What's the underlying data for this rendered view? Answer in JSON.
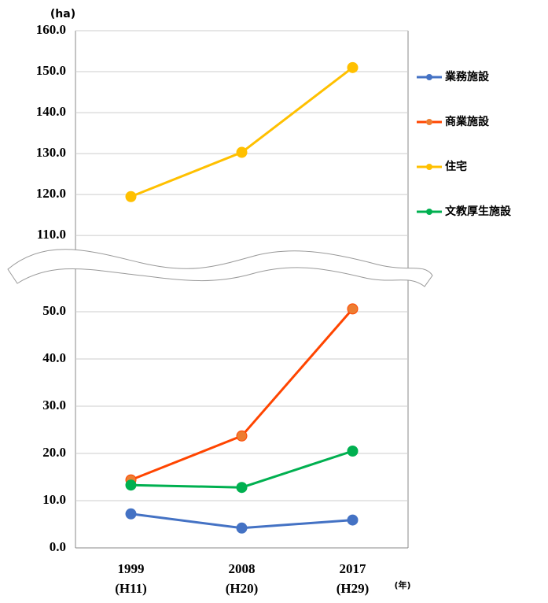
{
  "chart_data": {
    "type": "line",
    "y_label": "(ha)",
    "x_unit": "(年)",
    "categories": [
      "1999",
      "2008",
      "2017"
    ],
    "category_sublabels": [
      "(H11)",
      "(H20)",
      "(H29)"
    ],
    "ylim": [
      0,
      55
    ],
    "yticks": [
      {
        "value": 0,
        "label": "0.0"
      },
      {
        "value": 10,
        "label": "10.0"
      },
      {
        "value": 20,
        "label": "20.0"
      },
      {
        "value": 30,
        "label": "30.0"
      },
      {
        "value": 40,
        "label": "40.0"
      },
      {
        "value": 50,
        "label": "50.0"
      }
    ],
    "y2lim": [
      106,
      160
    ],
    "y2ticks": [
      {
        "value": 110,
        "label": "110.0"
      },
      {
        "value": 120,
        "label": "120.0"
      },
      {
        "value": 130,
        "label": "130.0"
      },
      {
        "value": 140,
        "label": "140.0"
      },
      {
        "value": 150,
        "label": "150.0"
      },
      {
        "value": 160,
        "label": "160.0"
      }
    ],
    "grid": true,
    "legend": "right",
    "series": [
      {
        "name": "業務施設",
        "color": "#4472c4",
        "values": [
          7.2,
          4.2,
          5.9
        ]
      },
      {
        "name": "商業施設",
        "color": "#ff4500",
        "marker_color": "#ed7d31",
        "values": [
          14.4,
          23.7,
          50.6
        ]
      },
      {
        "name": "住宅",
        "color": "#ffc000",
        "values": [
          119.5,
          130.3,
          151.0
        ],
        "axis": "y2"
      },
      {
        "name": "文教厚生施設",
        "color": "#00b050",
        "values": [
          13.3,
          12.8,
          20.5
        ]
      }
    ]
  }
}
